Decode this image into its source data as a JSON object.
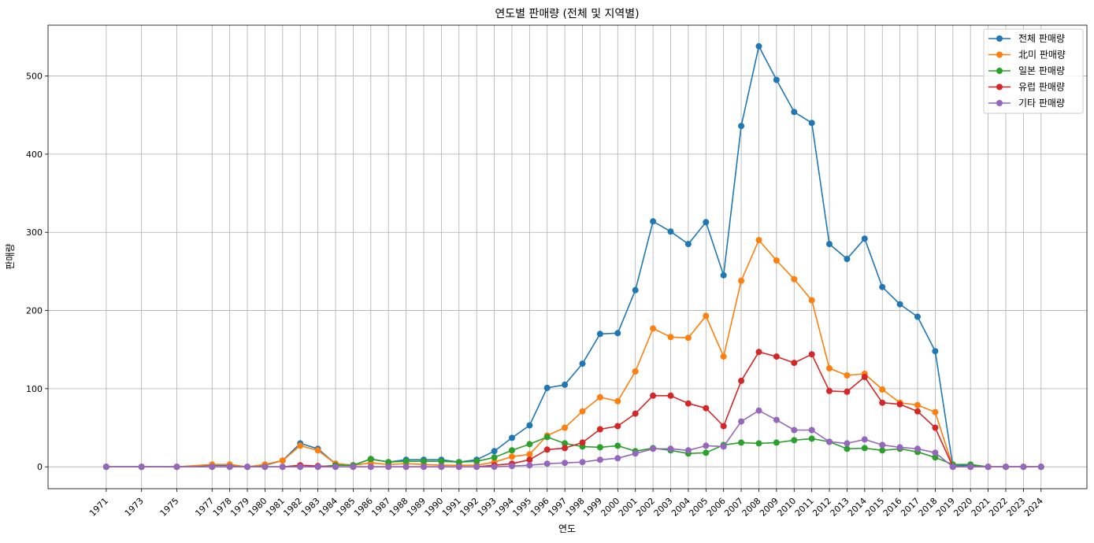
{
  "chart_data": {
    "type": "line",
    "title": "연도별 판매량 (전체 및 지역별)",
    "xlabel": "연도",
    "ylabel": "판매량",
    "x": [
      1971,
      1973,
      1975,
      1977,
      1978,
      1979,
      1980,
      1981,
      1982,
      1983,
      1984,
      1985,
      1986,
      1987,
      1988,
      1989,
      1990,
      1991,
      1992,
      1993,
      1994,
      1995,
      1996,
      1997,
      1998,
      1999,
      2000,
      2001,
      2002,
      2003,
      2004,
      2005,
      2006,
      2007,
      2008,
      2009,
      2010,
      2011,
      2012,
      2013,
      2014,
      2015,
      2016,
      2017,
      2018,
      2019,
      2020,
      2021,
      2022,
      2023,
      2024
    ],
    "ylim": [
      -28,
      565
    ],
    "yticks": [
      0,
      100,
      200,
      300,
      400,
      500
    ],
    "grid": true,
    "legend_position": "top-right",
    "series": [
      {
        "name": "전체 판매량",
        "color": "#1f77b4",
        "values": [
          0,
          0,
          0,
          2,
          2,
          0,
          2,
          8,
          30,
          23,
          4,
          2,
          10,
          6,
          9,
          9,
          9,
          6,
          9,
          20,
          37,
          53,
          101,
          105,
          132,
          170,
          171,
          226,
          314,
          301,
          285,
          313,
          245,
          436,
          538,
          495,
          454,
          440,
          285,
          266,
          292,
          230,
          208,
          192,
          148,
          1,
          2,
          0,
          0,
          0,
          0
        ]
      },
      {
        "name": "北미 판매량",
        "color": "#ff7f0e",
        "values": [
          0,
          0,
          0,
          3,
          3,
          0,
          3,
          8,
          27,
          21,
          4,
          2,
          5,
          3,
          4,
          3,
          2,
          2,
          2,
          6,
          13,
          16,
          40,
          50,
          71,
          89,
          84,
          122,
          177,
          166,
          165,
          193,
          141,
          238,
          290,
          264,
          240,
          213,
          126,
          117,
          119,
          99,
          82,
          79,
          70,
          0,
          0,
          0,
          0,
          0,
          0
        ]
      },
      {
        "name": "일본 판매량",
        "color": "#2ca02c",
        "values": [
          0,
          0,
          0,
          0,
          0,
          0,
          0,
          0,
          0,
          0,
          2,
          2,
          10,
          6,
          7,
          7,
          7,
          6,
          7,
          12,
          21,
          29,
          38,
          30,
          26,
          25,
          27,
          20,
          24,
          21,
          17,
          18,
          28,
          31,
          30,
          31,
          34,
          36,
          32,
          23,
          24,
          21,
          23,
          19,
          12,
          3,
          3,
          0,
          0,
          0,
          0
        ]
      },
      {
        "name": "유럽 판매량",
        "color": "#d62728",
        "values": [
          0,
          0,
          0,
          0,
          0,
          0,
          0,
          0,
          2,
          1,
          0,
          0,
          0,
          0,
          0,
          0,
          0,
          0,
          0,
          2,
          4,
          9,
          22,
          24,
          31,
          48,
          52,
          68,
          91,
          91,
          81,
          75,
          52,
          110,
          147,
          141,
          133,
          144,
          97,
          96,
          115,
          82,
          80,
          71,
          50,
          0,
          0,
          0,
          0,
          0,
          0
        ]
      },
      {
        "name": "기타 판매량",
        "color": "#9467bd",
        "values": [
          0,
          0,
          0,
          0,
          0,
          0,
          0,
          0,
          0,
          0,
          0,
          0,
          0,
          0,
          0,
          0,
          0,
          0,
          0,
          0,
          1,
          2,
          4,
          5,
          6,
          9,
          11,
          17,
          23,
          23,
          21,
          27,
          26,
          58,
          72,
          60,
          47,
          47,
          32,
          30,
          35,
          28,
          25,
          23,
          18,
          0,
          0,
          0,
          0,
          0,
          0
        ]
      }
    ]
  }
}
